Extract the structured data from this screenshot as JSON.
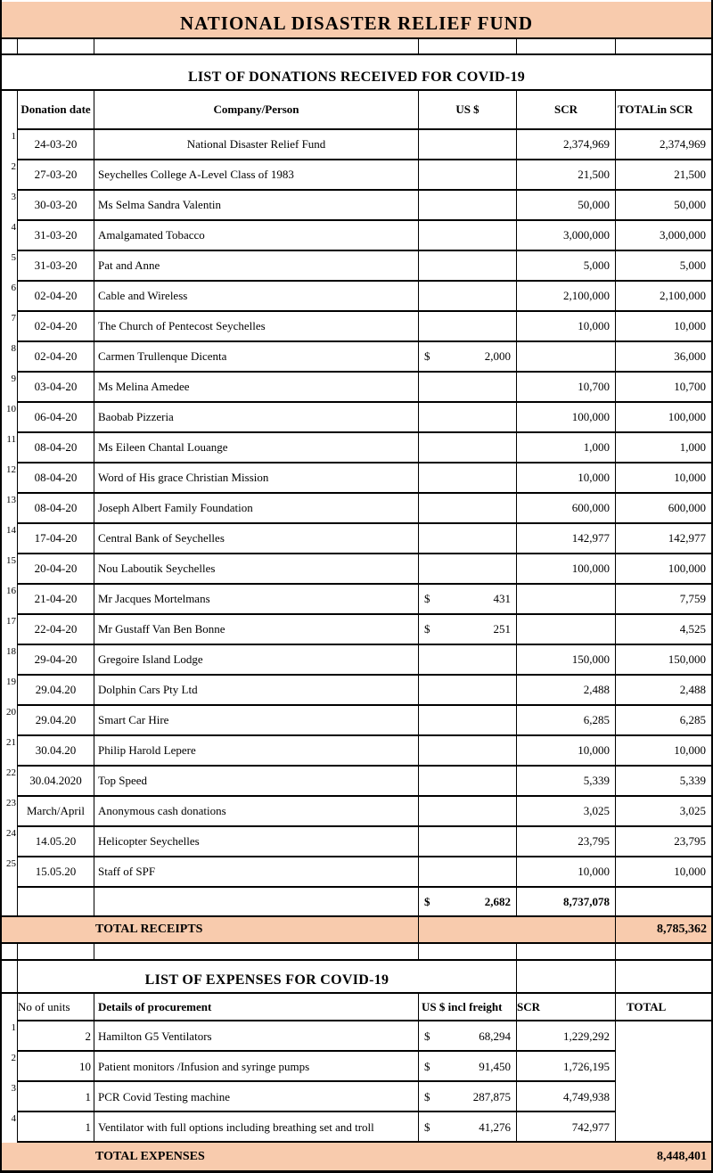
{
  "sheet_title": "NATIONAL DISASTER RELIEF FUND",
  "colors": {
    "accent_peach": "#F8CBAD",
    "border": "#000000"
  },
  "donations": {
    "section_title": "LIST OF DONATIONS RECEIVED FOR COVID-19",
    "headers": {
      "date": "Donation date",
      "company": "Company/Person",
      "usd": "US $",
      "scr": "SCR",
      "total": "TOTALin SCR"
    },
    "rows": [
      {
        "n": "1",
        "date": "24-03-20",
        "company": "National Disaster Relief Fund",
        "company_align": "center",
        "usd_sym": "",
        "usd": "",
        "scr": "2,374,969",
        "total": "2,374,969"
      },
      {
        "n": "2",
        "date": "27-03-20",
        "company": "Seychelles College A-Level Class of 1983",
        "usd_sym": "",
        "usd": "",
        "scr": "21,500",
        "total": "21,500"
      },
      {
        "n": "3",
        "date": "30-03-20",
        "company": "Ms Selma Sandra Valentin",
        "usd_sym": "",
        "usd": "",
        "scr": "50,000",
        "total": "50,000"
      },
      {
        "n": "4",
        "date": "31-03-20",
        "company": "Amalgamated Tobacco",
        "usd_sym": "",
        "usd": "",
        "scr": "3,000,000",
        "total": "3,000,000"
      },
      {
        "n": "5",
        "date": "31-03-20",
        "company": "Pat and Anne",
        "usd_sym": "",
        "usd": "",
        "scr": "5,000",
        "total": "5,000"
      },
      {
        "n": "6",
        "date": "02-04-20",
        "company": "Cable and Wireless",
        "usd_sym": "",
        "usd": "",
        "scr": "2,100,000",
        "total": "2,100,000"
      },
      {
        "n": "7",
        "date": "02-04-20",
        "company": "The Church of Pentecost Seychelles",
        "usd_sym": "",
        "usd": "",
        "scr": "10,000",
        "total": "10,000"
      },
      {
        "n": "8",
        "date": "02-04-20",
        "company": "Carmen Trullenque Dicenta",
        "usd_sym": "$",
        "usd": "2,000",
        "scr": "",
        "total": "36,000"
      },
      {
        "n": "9",
        "date": "03-04-20",
        "company": "Ms Melina Amedee",
        "usd_sym": "",
        "usd": "",
        "scr": "10,700",
        "total": "10,700"
      },
      {
        "n": "10",
        "date": "06-04-20",
        "company": "Baobab Pizzeria",
        "usd_sym": "",
        "usd": "",
        "scr": "100,000",
        "total": "100,000"
      },
      {
        "n": "11",
        "date": "08-04-20",
        "company": "Ms Eileen Chantal Louange",
        "usd_sym": "",
        "usd": "",
        "scr": "1,000",
        "total": "1,000"
      },
      {
        "n": "12",
        "date": "08-04-20",
        "company": "Word of His grace Christian Mission",
        "usd_sym": "",
        "usd": "",
        "scr": "10,000",
        "total": "10,000"
      },
      {
        "n": "13",
        "date": "08-04-20",
        "company": "Joseph Albert Family Foundation",
        "usd_sym": "",
        "usd": "",
        "scr": "600,000",
        "total": "600,000"
      },
      {
        "n": "14",
        "date": "17-04-20",
        "company": "Central Bank of Seychelles",
        "usd_sym": "",
        "usd": "",
        "scr": "142,977",
        "total": "142,977"
      },
      {
        "n": "15",
        "date": "20-04-20",
        "company": "Nou Laboutik Seychelles",
        "usd_sym": "",
        "usd": "",
        "scr": "100,000",
        "total": "100,000"
      },
      {
        "n": "16",
        "date": "21-04-20",
        "company": "Mr Jacques  Mortelmans",
        "usd_sym": "$",
        "usd": "431",
        "scr": "",
        "total": "7,759"
      },
      {
        "n": "17",
        "date": "22-04-20",
        "company": "Mr Gustaff Van Ben Bonne",
        "usd_sym": "$",
        "usd": "251",
        "scr": "",
        "total": "4,525"
      },
      {
        "n": "18",
        "date": "29-04-20",
        "company": "Gregoire Island Lodge",
        "usd_sym": "",
        "usd": "",
        "scr": "150,000",
        "total": "150,000"
      },
      {
        "n": "19",
        "date": "29.04.20",
        "company": "Dolphin Cars Pty Ltd",
        "usd_sym": "",
        "usd": "",
        "scr": "2,488",
        "total": "2,488"
      },
      {
        "n": "20",
        "date": "29.04.20",
        "company": "Smart Car Hire",
        "usd_sym": "",
        "usd": "",
        "scr": "6,285",
        "total": "6,285"
      },
      {
        "n": "21",
        "date": "30.04.20",
        "company": "Philip Harold Lepere",
        "usd_sym": "",
        "usd": "",
        "scr": "10,000",
        "total": "10,000"
      },
      {
        "n": "22",
        "date": "30.04.2020",
        "company": "Top Speed",
        "usd_sym": "",
        "usd": "",
        "scr": "5,339",
        "total": "5,339"
      },
      {
        "n": "23",
        "date": "March/April",
        "company": "Anonymous cash donations",
        "usd_sym": "",
        "usd": "",
        "scr": "3,025",
        "total": "3,025"
      },
      {
        "n": "24",
        "date": "14.05.20",
        "company": "Helicopter Seychelles",
        "usd_sym": "",
        "usd": "",
        "scr": "23,795",
        "total": "23,795"
      },
      {
        "n": "25",
        "date": "15.05.20",
        "company": "Staff of SPF",
        "usd_sym": "",
        "usd": "",
        "scr": "10,000",
        "total": "10,000"
      }
    ],
    "subtotal_row": {
      "usd_sym": "$",
      "usd": "2,682",
      "scr": "8,737,078",
      "total": ""
    },
    "total_row": {
      "label": "TOTAL RECEIPTS",
      "value": "8,785,362"
    }
  },
  "expenses": {
    "section_title": "LIST OF EXPENSES FOR COVID-19",
    "headers": {
      "units": "No of units",
      "details": "Details of procurement",
      "usd": "US $ incl freight",
      "scr": "SCR",
      "total": "TOTAL"
    },
    "rows": [
      {
        "n": "1",
        "units": "2",
        "details": "Hamilton G5 Ventilators",
        "usd_sym": "$",
        "usd": "68,294",
        "scr": "1,229,292"
      },
      {
        "n": "2",
        "units": "10",
        "details": "Patient monitors /Infusion and syringe pumps",
        "usd_sym": "$",
        "usd": "91,450",
        "scr": "1,726,195"
      },
      {
        "n": "3",
        "units": "1",
        "details": "PCR Covid Testing machine",
        "usd_sym": "$",
        "usd": "287,875",
        "scr": "4,749,938"
      },
      {
        "n": "4",
        "units": "1",
        "details": "Ventilator with full options including breathing set and troll",
        "usd_sym": "$",
        "usd": "41,276",
        "scr": "742,977"
      }
    ],
    "total_row": {
      "label": "TOTAL EXPENSES",
      "value": "8,448,401"
    }
  }
}
